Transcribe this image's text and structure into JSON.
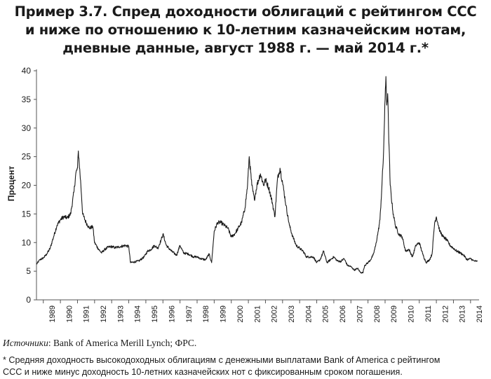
{
  "title_lines": [
    "Пример 3.7. Спред доходности облигаций с рейтингом ССС",
    "и ниже по отношению к 10-летним казначейским нотам,",
    "дневные данные, август 1988 г. — май 2014 г.*"
  ],
  "sources": {
    "label": "Источники",
    "text": ": Bank of America Merill Lynch; ФРС."
  },
  "footnote_lines": [
    "* Средняя доходность высокодоходных облигациям с денежными выплатами Bank of America с рейтингом",
    "ССС и ниже минус доходность 10-летних казначейских нот с фиксированным сроком погашения."
  ],
  "colors": {
    "line": "#1a1a1a",
    "axis": "#555555"
  },
  "chart_data": {
    "type": "line",
    "title": "Пример 3.7. Спред доходности облигаций с рейтингом ССС и ниже по отношению к 10-летним казначейским нотам, дневные данные, август 1988 г. — май 2014 г.*",
    "xlabel": "",
    "ylabel": "Процент",
    "xlim": [
      1988.6,
      2014.5
    ],
    "ylim": [
      0,
      40
    ],
    "yticks": [
      0,
      5,
      10,
      15,
      20,
      25,
      30,
      35,
      40
    ],
    "xticks": [
      "1989",
      "1990",
      "1991",
      "1992",
      "1993",
      "1994",
      "1995",
      "1996",
      "1997",
      "1998",
      "1999",
      "2000",
      "2001",
      "2002",
      "2003",
      "2004",
      "2005",
      "2006",
      "2007",
      "2008",
      "2009",
      "2010",
      "2011",
      "2012",
      "2013",
      "2014"
    ],
    "grid": false,
    "legend": "none",
    "series": [
      {
        "x": [
          1988.6,
          1988.8,
          1989.0,
          1989.2,
          1989.4,
          1989.6,
          1989.8,
          1990.0,
          1990.2,
          1990.4,
          1990.6,
          1990.8,
          1990.9,
          1991.0,
          1991.05,
          1991.1,
          1991.2,
          1991.3,
          1991.5,
          1991.7,
          1991.9,
          1992.0,
          1992.2,
          1992.4,
          1992.6,
          1992.8,
          1993.0,
          1993.2,
          1993.5,
          1993.8,
          1994.0,
          1994.1,
          1994.3,
          1994.6,
          1994.9,
          1995.1,
          1995.3,
          1995.5,
          1995.7,
          1995.9,
          1996.0,
          1996.2,
          1996.5,
          1996.8,
          1997.0,
          1997.2,
          1997.5,
          1997.8,
          1998.0,
          1998.2,
          1998.5,
          1998.7,
          1998.85,
          1999.0,
          1999.2,
          1999.4,
          1999.6,
          1999.8,
          2000.0,
          2000.2,
          2000.4,
          2000.6,
          2000.8,
          2000.95,
          2001.05,
          2001.2,
          2001.35,
          2001.5,
          2001.7,
          2001.9,
          2002.0,
          2002.2,
          2002.4,
          2002.55,
          2002.7,
          2002.85,
          2003.0,
          2003.2,
          2003.4,
          2003.6,
          2003.8,
          2004.0,
          2004.2,
          2004.4,
          2004.6,
          2004.8,
          2005.0,
          2005.2,
          2005.4,
          2005.6,
          2005.8,
          2006.0,
          2006.2,
          2006.4,
          2006.6,
          2006.8,
          2007.0,
          2007.2,
          2007.4,
          2007.55,
          2007.7,
          2007.8,
          2008.0,
          2008.15,
          2008.3,
          2008.45,
          2008.6,
          2008.7,
          2008.8,
          2008.9,
          2008.95,
          2009.0,
          2009.05,
          2009.1,
          2009.15,
          2009.2,
          2009.3,
          2009.45,
          2009.6,
          2009.8,
          2010.0,
          2010.2,
          2010.4,
          2010.6,
          2010.8,
          2011.0,
          2011.2,
          2011.4,
          2011.6,
          2011.75,
          2011.9,
          2012.0,
          2012.2,
          2012.4,
          2012.6,
          2012.8,
          2013.0,
          2013.2,
          2013.4,
          2013.6,
          2013.8,
          2014.0,
          2014.2,
          2014.4
        ],
        "y": [
          6.2,
          7.0,
          7.3,
          8.0,
          9.0,
          11.0,
          13.0,
          14.0,
          14.5,
          14.3,
          15.0,
          19.0,
          22.0,
          23.0,
          26.0,
          24.0,
          20.0,
          15.0,
          13.5,
          12.5,
          12.8,
          10.0,
          9.0,
          8.2,
          8.8,
          9.2,
          9.3,
          9.1,
          9.3,
          9.5,
          9.3,
          6.5,
          6.6,
          6.8,
          7.5,
          8.5,
          8.8,
          9.5,
          9.0,
          10.5,
          11.5,
          9.5,
          8.5,
          7.8,
          9.5,
          8.2,
          8.0,
          7.5,
          7.5,
          7.2,
          7.0,
          8.0,
          6.5,
          12.0,
          13.5,
          13.5,
          13.0,
          12.5,
          11.0,
          11.5,
          12.5,
          13.5,
          16.0,
          20.0,
          25.0,
          20.0,
          17.5,
          20.0,
          22.0,
          20.0,
          21.0,
          19.5,
          17.0,
          14.5,
          21.0,
          23.0,
          20.5,
          16.5,
          13.0,
          11.0,
          9.5,
          9.0,
          8.5,
          7.5,
          7.5,
          7.5,
          6.5,
          7.0,
          8.5,
          6.5,
          7.0,
          7.5,
          6.8,
          6.7,
          7.2,
          6.0,
          5.8,
          5.2,
          5.5,
          4.8,
          4.7,
          6.0,
          6.5,
          7.0,
          7.8,
          9.5,
          12.0,
          14.0,
          19.0,
          25.0,
          30.0,
          35.0,
          39.0,
          34.0,
          36.0,
          30.0,
          20.0,
          15.5,
          13.0,
          11.5,
          11.0,
          8.5,
          8.8,
          7.5,
          9.5,
          10.0,
          8.0,
          6.5,
          7.0,
          8.0,
          13.5,
          14.5,
          12.0,
          11.0,
          10.5,
          9.5,
          9.0,
          8.5,
          8.2,
          7.8,
          7.0,
          7.2,
          6.8,
          6.7
        ]
      }
    ]
  }
}
